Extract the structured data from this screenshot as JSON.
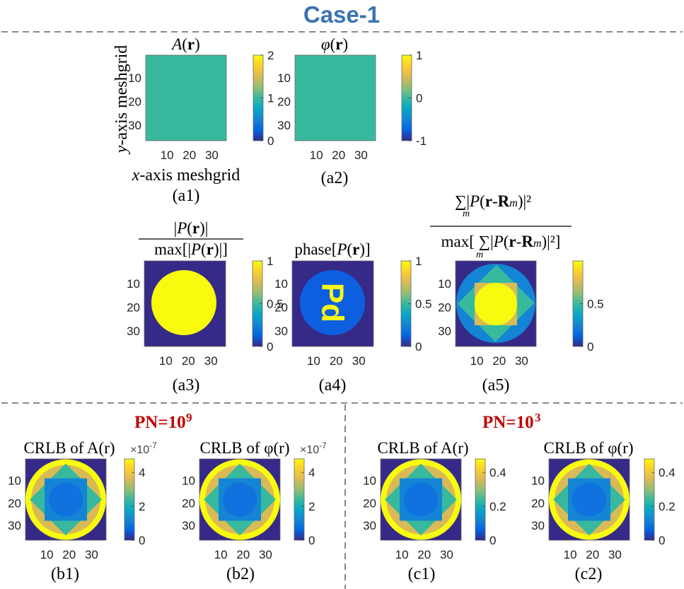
{
  "header": {
    "title": "Case-1",
    "title_color": "#3a73b5"
  },
  "groups": [
    {
      "label": "PN=10",
      "exp": "9",
      "color": "#c00000"
    },
    {
      "label": "PN=10",
      "exp": "3",
      "color": "#c00000"
    }
  ],
  "axis_labels": {
    "y": "-axis meshgrid",
    "y_var": "y",
    "x": "-axis meshgrid",
    "x_var": "x"
  },
  "colors": {
    "parula_stops": [
      "#352a87",
      "#0363e1",
      "#1485d4",
      "#06a7c6",
      "#38b99e",
      "#92bf73",
      "#d9ba56",
      "#fcce2e",
      "#f9fb0e"
    ],
    "divider": "#444444"
  },
  "chart_data": [
    {
      "id": "a1",
      "type": "heatmap",
      "caption": "(a1)",
      "title": "A(r)",
      "x_ticks": [
        "10",
        "20",
        "30"
      ],
      "y_ticks": [
        "10",
        "20",
        "30"
      ],
      "clim": [
        0,
        2
      ],
      "cbar_ticks": [
        "0",
        "1",
        "2"
      ],
      "exponent": "",
      "grid_size": [
        36,
        36
      ],
      "uniform_value": 1
    },
    {
      "id": "a2",
      "type": "heatmap",
      "caption": "(a2)",
      "title": "φ(r)",
      "x_ticks": [
        "10",
        "20",
        "30"
      ],
      "y_ticks": [
        "10",
        "20",
        "30"
      ],
      "clim": [
        -1,
        1
      ],
      "cbar_ticks": [
        "-1",
        "0",
        "1"
      ],
      "exponent": "",
      "grid_size": [
        36,
        36
      ],
      "uniform_value": 0
    },
    {
      "id": "a3",
      "type": "heatmap",
      "caption": "(a3)",
      "title": "|P(r)| / max[|P(r)|]",
      "x_ticks": [
        "10",
        "20",
        "30"
      ],
      "y_ticks": [
        "10",
        "20",
        "30"
      ],
      "clim": [
        0,
        1
      ],
      "cbar_ticks": [
        "0",
        "0.5",
        "1"
      ],
      "exponent": "",
      "grid_size": [
        36,
        36
      ],
      "pattern": "disk",
      "disk_value": 1,
      "background_value": 0
    },
    {
      "id": "a4",
      "type": "heatmap",
      "caption": "(a4)",
      "title": "phase[P(r)]",
      "x_ticks": [
        "10",
        "20",
        "30"
      ],
      "y_ticks": [
        "10",
        "20",
        "30"
      ],
      "clim": [
        0,
        1
      ],
      "cbar_ticks": [
        "0",
        "0.5",
        "1"
      ],
      "exponent": "",
      "grid_size": [
        36,
        36
      ],
      "pattern": "disk with rotated letters",
      "letters": "Pd",
      "disk_value": 0.15,
      "letter_value": 1,
      "background_value": 0
    },
    {
      "id": "a5",
      "type": "heatmap",
      "caption": "(a5)",
      "title": "Σ|P(r-Rm)|² / max[Σ|P(r-Rm)|²]",
      "x_ticks": [
        "10",
        "20",
        "30"
      ],
      "y_ticks": [
        "10",
        "20",
        "30"
      ],
      "clim": [
        0,
        1
      ],
      "cbar_ticks": [
        "0",
        "0.5"
      ],
      "exponent": "",
      "grid_size": [
        36,
        36
      ],
      "pattern": "overlap of four shifted disks"
    },
    {
      "id": "b1",
      "type": "heatmap",
      "caption": "(b1)",
      "title": "CRLB of A(r)",
      "x_ticks": [
        "10",
        "20",
        "30"
      ],
      "y_ticks": [
        "10",
        "20",
        "30"
      ],
      "clim": [
        0,
        4.8
      ],
      "cbar_ticks": [
        "0",
        "2",
        "4"
      ],
      "exponent": "-7",
      "exp_base": "×10",
      "grid_size": [
        36,
        36
      ],
      "pattern": "inverse overlap"
    },
    {
      "id": "b2",
      "type": "heatmap",
      "caption": "(b2)",
      "title": "CRLB of φ(r)",
      "x_ticks": [
        "10",
        "20",
        "30"
      ],
      "y_ticks": [
        "10",
        "20",
        "30"
      ],
      "clim": [
        0,
        4.8
      ],
      "cbar_ticks": [
        "0",
        "2",
        "4"
      ],
      "exponent": "-7",
      "exp_base": "×10",
      "grid_size": [
        36,
        36
      ],
      "pattern": "inverse overlap"
    },
    {
      "id": "c1",
      "type": "heatmap",
      "caption": "(c1)",
      "title": "CRLB of A(r)",
      "x_ticks": [
        "10",
        "20",
        "30"
      ],
      "y_ticks": [
        "10",
        "20",
        "30"
      ],
      "clim": [
        0,
        0.48
      ],
      "cbar_ticks": [
        "0",
        "0.2",
        "0.4"
      ],
      "exponent": "",
      "grid_size": [
        36,
        36
      ],
      "pattern": "inverse overlap"
    },
    {
      "id": "c2",
      "type": "heatmap",
      "caption": "(c2)",
      "title": "CRLB of φ(r)",
      "x_ticks": [
        "10",
        "20",
        "30"
      ],
      "y_ticks": [
        "10",
        "20",
        "30"
      ],
      "clim": [
        0,
        0.48
      ],
      "cbar_ticks": [
        "0",
        "0.2",
        "0.4"
      ],
      "exponent": "",
      "grid_size": [
        36,
        36
      ],
      "pattern": "inverse overlap"
    }
  ]
}
